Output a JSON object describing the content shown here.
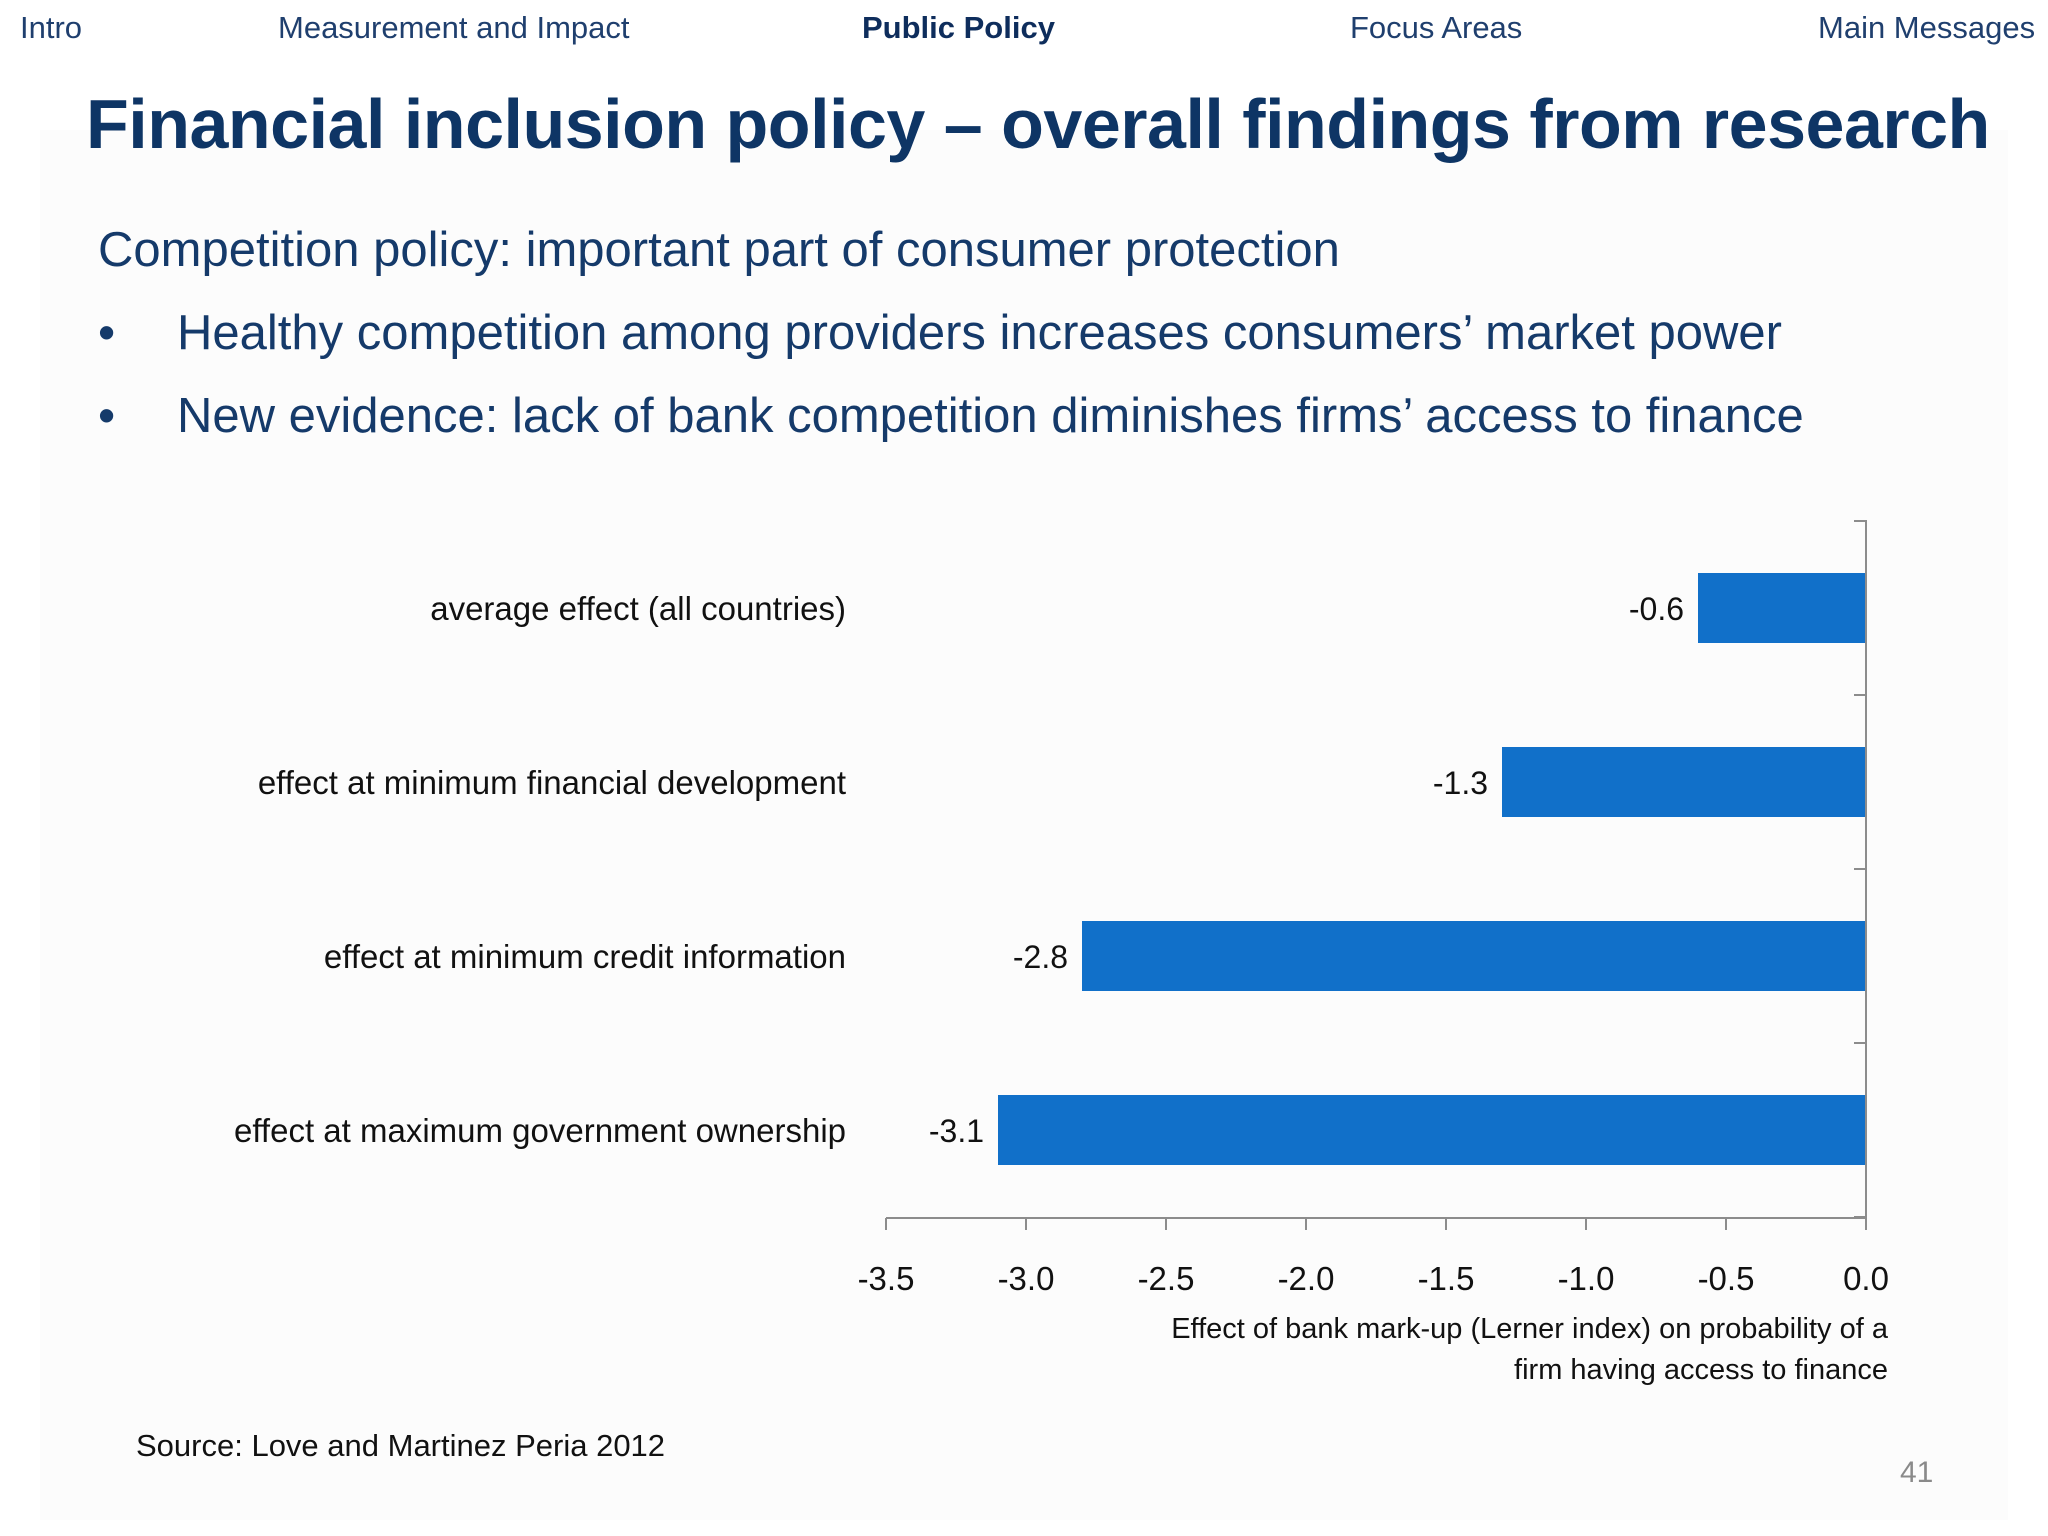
{
  "nav": {
    "items": [
      {
        "label": "Intro",
        "active": false
      },
      {
        "label": "Measurement and Impact",
        "active": false
      },
      {
        "label": "Public Policy",
        "active": true
      },
      {
        "label": "Focus Areas",
        "active": false
      },
      {
        "label": "Main Messages",
        "active": false
      }
    ]
  },
  "slide": {
    "title": "Financial inclusion policy – overall findings from research",
    "lead": "Competition policy: important part of consumer protection",
    "bullets": [
      "Healthy competition among providers increases consumers’ market power",
      "New evidence: lack of bank competition diminishes firms’ access to finance"
    ],
    "bullet_symbol": "•",
    "source": "Source: Love and Martinez Peria 2012",
    "page_number": "41"
  },
  "colors": {
    "bar": "#1170c9",
    "title": "#0e3565",
    "nav": "#1f3f6e",
    "text": "#153a6a"
  },
  "chart_data": {
    "type": "bar",
    "orientation": "horizontal",
    "categories": [
      "average effect (all countries)",
      "effect at minimum financial development",
      "effect at minimum credit information",
      "effect at maximum government ownership"
    ],
    "values": [
      -0.6,
      -1.3,
      -2.8,
      -3.1
    ],
    "value_labels": [
      "-0.6",
      "-1.3",
      "-2.8",
      "-3.1"
    ],
    "xlim": [
      -3.5,
      0.0
    ],
    "xticks": [
      "-3.5",
      "-3.0",
      "-2.5",
      "-2.0",
      "-1.5",
      "-1.0",
      "-0.5",
      "0.0"
    ],
    "xlabel_lines": [
      "Effect of bank mark-up (Lerner index) on probability of a",
      "firm having access to finance"
    ],
    "ylabel": "",
    "grid": false,
    "legend": "none"
  }
}
